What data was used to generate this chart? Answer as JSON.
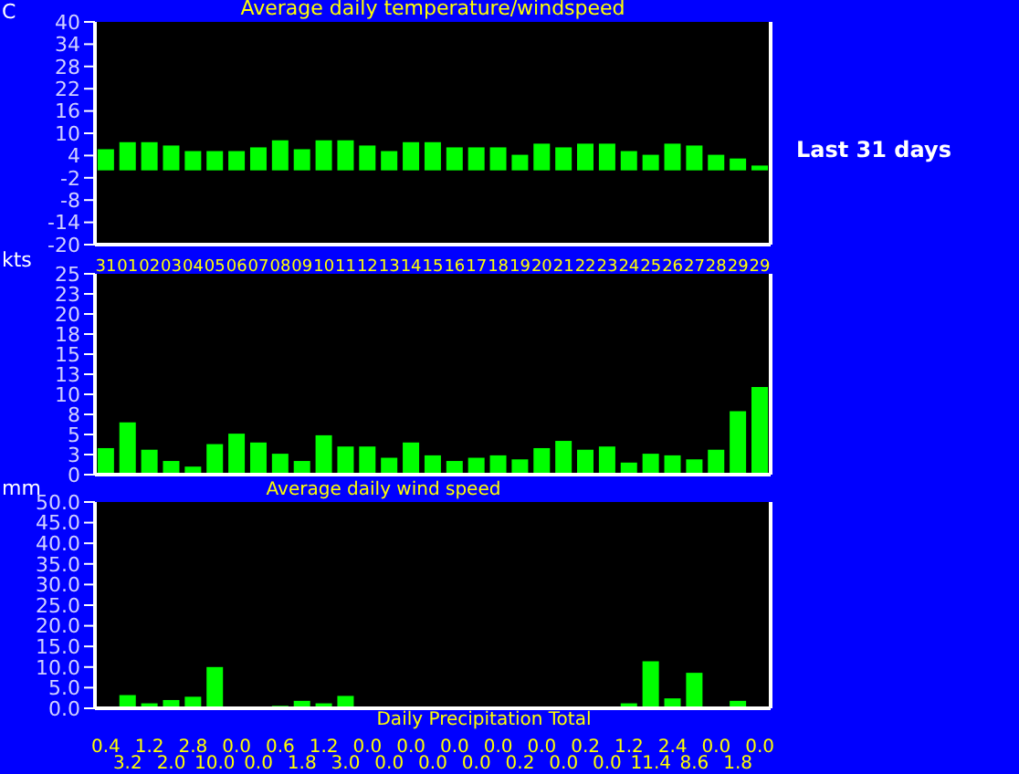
{
  "chart_data": [
    {
      "type": "bar",
      "title": "Average daily temperature/windspeed",
      "ylabel": "C",
      "annotations": [
        "Last 31 days"
      ],
      "categories": [
        "31",
        "01",
        "02",
        "03",
        "04",
        "05",
        "06",
        "07",
        "08",
        "09",
        "10",
        "11",
        "12",
        "13",
        "14",
        "15",
        "16",
        "17",
        "18",
        "19",
        "20",
        "21",
        "22",
        "23",
        "24",
        "25",
        "26",
        "27",
        "28",
        "29",
        "29"
      ],
      "values": [
        5.7,
        7.6,
        7.6,
        6.7,
        5.2,
        5.2,
        5.2,
        6.2,
        8.1,
        5.7,
        8.1,
        8.1,
        6.7,
        5.2,
        7.6,
        7.6,
        6.2,
        6.2,
        6.2,
        4.2,
        7.2,
        6.2,
        7.2,
        7.2,
        5.2,
        4.2,
        7.2,
        6.7,
        4.2,
        3.2,
        1.3
      ],
      "color": "#00ff00",
      "ylim": [
        -20,
        40
      ],
      "yticks": [
        -20,
        -14,
        -8,
        -2,
        4,
        10,
        16,
        22,
        28,
        34,
        40
      ]
    },
    {
      "type": "bar",
      "ylabel": "kts",
      "xlabel": "Average daily wind speed",
      "categories": [
        "31",
        "01",
        "02",
        "03",
        "04",
        "05",
        "06",
        "07",
        "08",
        "09",
        "10",
        "11",
        "12",
        "13",
        "14",
        "15",
        "16",
        "17",
        "18",
        "19",
        "20",
        "21",
        "22",
        "23",
        "24",
        "25",
        "26",
        "27",
        "28",
        "29",
        "29"
      ],
      "values": [
        3.3,
        6.5,
        3.1,
        1.7,
        1.0,
        3.8,
        5.1,
        4.0,
        2.6,
        1.7,
        4.9,
        3.5,
        3.5,
        2.1,
        4.0,
        2.4,
        1.7,
        2.1,
        2.4,
        1.9,
        3.3,
        4.2,
        3.1,
        3.5,
        1.5,
        2.6,
        2.4,
        1.9,
        3.1,
        7.9,
        10.9
      ],
      "color": "#00ff00",
      "ylim": [
        0,
        25
      ],
      "yticks": [
        0,
        {
          "value": 2.5,
          "label": "3"
        },
        5,
        {
          "value": 7.5,
          "label": "8"
        },
        10,
        {
          "value": 12.5,
          "label": "13"
        },
        15,
        {
          "value": 17.5,
          "label": "18"
        },
        20,
        {
          "value": 22.5,
          "label": "23"
        },
        25
      ],
      "tick_labels": "y"
    },
    {
      "type": "bar",
      "ylabel": "mm",
      "xlabel": "Daily Precipitation Total",
      "categories": [
        "31",
        "01",
        "02",
        "03",
        "04",
        "05",
        "06",
        "07",
        "08",
        "09",
        "10",
        "11",
        "12",
        "13",
        "14",
        "15",
        "16",
        "17",
        "18",
        "19",
        "20",
        "21",
        "22",
        "23",
        "24",
        "25",
        "26",
        "27",
        "28",
        "29",
        "29"
      ],
      "values": [
        0.4,
        3.2,
        1.2,
        2.0,
        2.8,
        10.0,
        0.0,
        0.0,
        0.6,
        1.8,
        1.2,
        3.0,
        0.0,
        0.0,
        0.0,
        0.0,
        0.0,
        0.0,
        0.0,
        0.2,
        0.0,
        0.0,
        0.2,
        0.0,
        1.2,
        11.4,
        2.4,
        8.6,
        0.0,
        1.8,
        0.0
      ],
      "value_labels": [
        "0.4",
        "3.2",
        "1.2",
        "2.0",
        "2.8",
        "10.0",
        "0.0",
        "0.0",
        "0.6",
        "1.8",
        "1.2",
        "3.0",
        "0.0",
        "0.0",
        "0.0",
        "0.0",
        "0.0",
        "0.0",
        "0.0",
        "0.2",
        "0.0",
        "0.0",
        "0.2",
        "0.0",
        "1.2",
        "11.4",
        "2.4",
        "8.6",
        "0.0",
        "1.8",
        "0.0"
      ],
      "color": "#00ff00",
      "ylim": [
        0,
        50
      ],
      "yticks": [
        {
          "value": 0,
          "label": "0.0"
        },
        {
          "value": 5,
          "label": "5.0"
        },
        {
          "value": 10,
          "label": "10.0"
        },
        {
          "value": 15,
          "label": "15.0"
        },
        {
          "value": 20,
          "label": "20.0"
        },
        {
          "value": 25,
          "label": "25.0"
        },
        {
          "value": 30,
          "label": "30.0"
        },
        {
          "value": 35,
          "label": "35.0"
        },
        {
          "value": 40,
          "label": "40.0"
        },
        {
          "value": 45,
          "label": "45.0"
        },
        {
          "value": 50,
          "label": "50.0"
        }
      ],
      "tick_labels": "y"
    }
  ]
}
